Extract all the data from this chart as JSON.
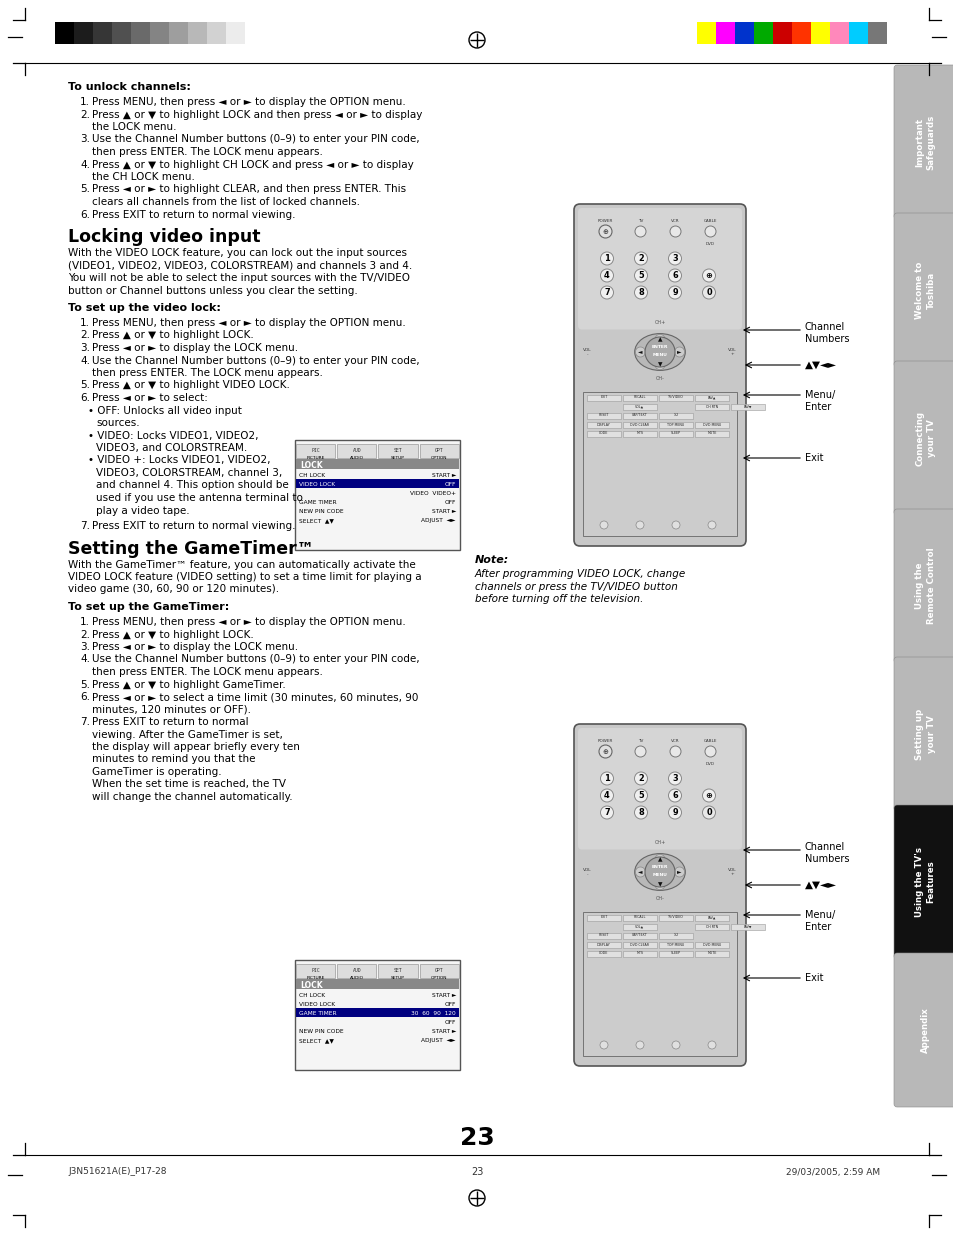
{
  "page_bg": "#ffffff",
  "page_number": "23",
  "footer_left": "J3N51621A(E)_P17-28",
  "footer_center": "23",
  "footer_right": "29/03/2005, 2:59 AM",
  "tab_labels": [
    "Important\nSafeguards",
    "Welcome to\nToshiba",
    "Connecting\nyour TV",
    "Using the\nRemote Control",
    "Setting up\nyour TV",
    "Using the TV's\nFeatures",
    "Appendix"
  ],
  "tab_active_index": 5,
  "tab_colors": [
    "#b8b8b8",
    "#b8b8b8",
    "#b8b8b8",
    "#b8b8b8",
    "#b8b8b8",
    "#111111",
    "#b8b8b8"
  ],
  "tab_text_colors": [
    "#ffffff",
    "#ffffff",
    "#ffffff",
    "#ffffff",
    "#ffffff",
    "#ffffff",
    "#ffffff"
  ],
  "grayscale_bars": [
    "#000000",
    "#1c1c1c",
    "#363636",
    "#505050",
    "#6a6a6a",
    "#848484",
    "#9e9e9e",
    "#b8b8b8",
    "#d2d2d2",
    "#ececec",
    "#ffffff"
  ],
  "color_bars": [
    "#ffff00",
    "#ff00ff",
    "#0033cc",
    "#00aa00",
    "#cc0000",
    "#ff3300",
    "#ffff00",
    "#ff88bb",
    "#00ccff",
    "#777777"
  ],
  "section1_title": "To unlock channels:",
  "section1_items": [
    "Press MENU, then press ◄ or ► to display the OPTION menu.",
    "Press ▲ or ▼ to highlight LOCK and then press ◄ or ► to display\nthe LOCK menu.",
    "Use the Channel Number buttons (0–9) to enter your PIN code,\nthen press ENTER. The LOCK menu appears.",
    "Press ▲ or ▼ to highlight CH LOCK and press ◄ or ► to display\nthe CH LOCK menu.",
    "Press ◄ or ► to highlight CLEAR, and then press ENTER. This\nclears all channels from the list of locked channels.",
    "Press EXIT to return to normal viewing."
  ],
  "section2_title": "Locking video input",
  "section2_intro": "With the VIDEO LOCK feature, you can lock out the input sources\n(VIDEO1, VIDEO2, VIDEO3, COLORSTREAM) and channels 3 and 4.\nYou will not be able to select the input sources with the TV/VIDEO\nbutton or Channel buttons unless you clear the setting.",
  "section2_sub": "To set up the video lock:",
  "section2_items": [
    "Press MENU, then press ◄ or ► to display the OPTION menu.",
    "Press ▲ or ▼ to highlight LOCK.",
    "Press ◄ or ► to display the LOCK menu.",
    "Use the Channel Number buttons (0–9) to enter your PIN code,\nthen press ENTER. The LOCK menu appears.",
    "Press ▲ or ▼ to highlight VIDEO LOCK.",
    "Press ◄ or ► to select:",
    "Press EXIT to return to normal viewing."
  ],
  "section2_bullets": [
    "OFF: Unlocks all video input",
    "  sources.",
    "VIDEO: Locks VIDEO1, VIDEO2,",
    "  VIDEO3, and COLORSTREAM.",
    "VIDEO +: Locks VIDEO1, VIDEO2,",
    "  VIDEO3, COLORSTREAM, channel 3,",
    "  and channel 4. This option should be",
    "  used if you use the antenna terminal to",
    "  play a video tape."
  ],
  "note_title": "Note:",
  "note_text": "After programming VIDEO LOCK, change\nchannels or press the TV/VIDEO button\nbefore turning off the television.",
  "section3_title": "Setting the GameTimer™",
  "section3_intro": "With the GameTimer™ feature, you can automatically activate the\nVIDEO LOCK feature (VIDEO setting) to set a time limit for playing a\nvideo game (30, 60, 90 or 120 minutes).",
  "section3_sub": "To set up the GameTimer:",
  "section3_items": [
    "Press MENU, then press ◄ or ► to display the OPTION menu.",
    "Press ▲ or ▼ to highlight LOCK.",
    "Press ◄ or ► to display the LOCK menu.",
    "Use the Channel Number buttons (0–9) to enter your PIN code,\nthen press ENTER. The LOCK menu appears.",
    "Press ▲ or ▼ to highlight GameTimer.",
    "Press ◄ or ► to select a time limit (30 minutes, 60 minutes, 90\nminutes, 120 minutes or OFF).",
    "Press EXIT to return to normal\nviewing. After the GameTimer is set,\nthe display will appear briefly every ten\nminutes to remind you that the\nGameTimer is operating.\nWhen the set time is reached, the TV\nwill change the channel automatically."
  ],
  "lock_menu1": {
    "icon_labels": [
      "PICTURE",
      "AUDIO",
      "SETUP",
      "OPTION"
    ],
    "rows": [
      [
        "CH LOCK",
        "START ►",
        false
      ],
      [
        "VIDEO LOCK",
        "OFF",
        true
      ],
      [
        "",
        "VIDEO  VIDEO+",
        false
      ],
      [
        "GAME TIMER",
        "OFF",
        false
      ],
      [
        "NEW PIN CODE",
        "START ►",
        false
      ],
      [
        "SELECT  ▲▼",
        "ADJUST  ◄►",
        false
      ]
    ]
  },
  "lock_menu2": {
    "icon_labels": [
      "PICTURE",
      "AUDIO",
      "SETUP",
      "OPTION"
    ],
    "rows": [
      [
        "CH LOCK",
        "START ►",
        false
      ],
      [
        "VIDEO LOCK",
        "OFF",
        false
      ],
      [
        "GAME TIMER",
        "30  60  90  120",
        true
      ],
      [
        "",
        "OFF",
        false
      ],
      [
        "NEW PIN CODE",
        "START ►",
        false
      ],
      [
        "SELECT  ▲▼",
        "ADJUST  ◄►",
        false
      ]
    ]
  }
}
